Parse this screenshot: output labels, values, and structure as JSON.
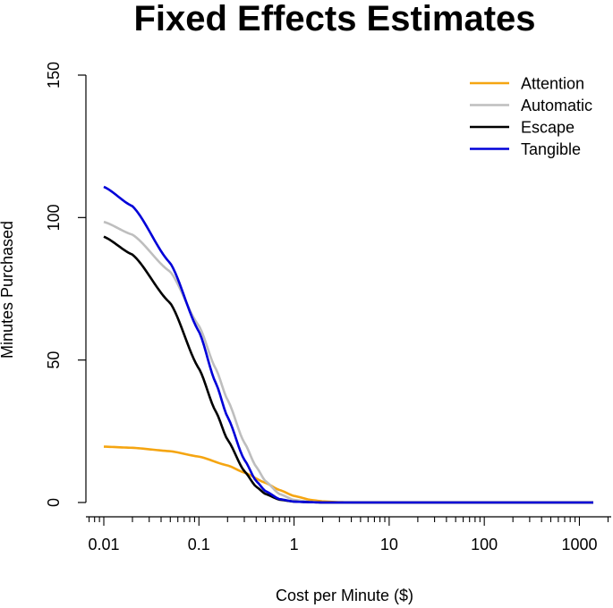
{
  "chart_data": {
    "type": "line",
    "title": "Fixed Effects Estimates",
    "xlabel": "Cost per Minute ($)",
    "ylabel": "Minutes Purchased",
    "x_scale": "log",
    "xlim": [
      0.01,
      1400
    ],
    "ylim": [
      0,
      150
    ],
    "x_ticks": [
      {
        "value": 0.01,
        "label": "0.01"
      },
      {
        "value": 0.1,
        "label": "0.1"
      },
      {
        "value": 1,
        "label": "1"
      },
      {
        "value": 10,
        "label": "10"
      },
      {
        "value": 100,
        "label": "100"
      },
      {
        "value": 1000,
        "label": "1000"
      }
    ],
    "y_ticks": [
      {
        "value": 0,
        "label": "0"
      },
      {
        "value": 50,
        "label": "50"
      },
      {
        "value": 100,
        "label": "100"
      },
      {
        "value": 150,
        "label": "150"
      }
    ],
    "grid": false,
    "legend_position": "top-right",
    "series": [
      {
        "name": "Attention",
        "color": "#f5a511",
        "x": [
          0.01,
          0.02,
          0.05,
          0.1,
          0.2,
          0.3,
          0.5,
          0.7,
          1,
          1.5,
          2,
          3,
          5,
          10,
          100,
          1400
        ],
        "y": [
          19.6,
          19.2,
          18.0,
          16.1,
          13.0,
          10.5,
          6.9,
          4.4,
          2.3,
          0.9,
          0.4,
          0.1,
          0,
          0,
          0,
          0
        ]
      },
      {
        "name": "Automatic",
        "color": "#bebebe",
        "x": [
          0.01,
          0.02,
          0.05,
          0.1,
          0.15,
          0.2,
          0.3,
          0.4,
          0.5,
          0.7,
          1,
          1.5,
          2,
          3,
          10,
          100,
          1400
        ],
        "y": [
          98.5,
          94.0,
          81.0,
          62.0,
          47.0,
          36.0,
          21.0,
          12.5,
          7.5,
          3.0,
          0.9,
          0.2,
          0,
          0,
          0,
          0,
          0
        ]
      },
      {
        "name": "Escape",
        "color": "#000000",
        "x": [
          0.01,
          0.02,
          0.05,
          0.1,
          0.15,
          0.2,
          0.3,
          0.4,
          0.5,
          0.7,
          1,
          1.5,
          2,
          10,
          100,
          1400
        ],
        "y": [
          93.3,
          87.0,
          70.0,
          47.0,
          32.0,
          22.0,
          11.0,
          5.5,
          3.0,
          1.0,
          0.3,
          0.1,
          0,
          0,
          0,
          0
        ]
      },
      {
        "name": "Tangible",
        "color": "#0000d8",
        "x": [
          0.01,
          0.02,
          0.05,
          0.1,
          0.15,
          0.2,
          0.3,
          0.4,
          0.5,
          0.7,
          1,
          1.5,
          2,
          10,
          100,
          1400
        ],
        "y": [
          110.8,
          104.0,
          84.0,
          60.0,
          42.0,
          30.0,
          15.0,
          7.5,
          4.0,
          1.2,
          0.3,
          0.1,
          0,
          0,
          0,
          0
        ]
      }
    ]
  }
}
